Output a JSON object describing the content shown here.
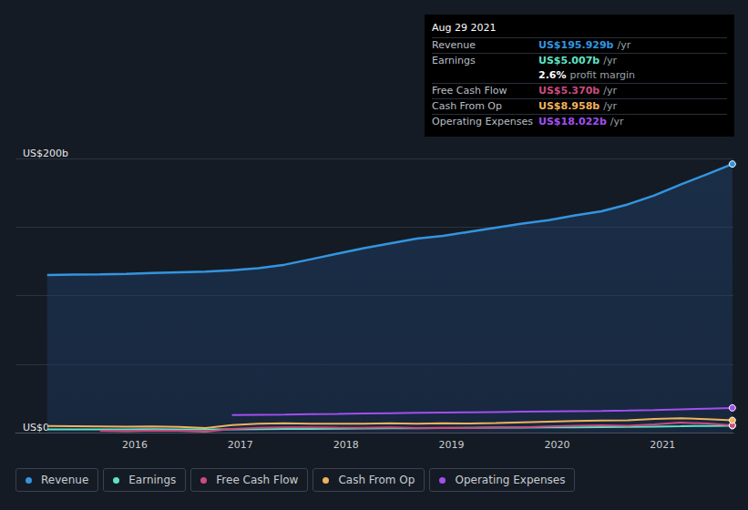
{
  "chart_data": {
    "type": "line",
    "x": [
      2015.17,
      2015.42,
      2015.67,
      2015.92,
      2016.17,
      2016.42,
      2016.67,
      2016.92,
      2017.17,
      2017.42,
      2017.67,
      2017.92,
      2018.17,
      2018.42,
      2018.67,
      2018.92,
      2019.17,
      2019.42,
      2019.67,
      2019.92,
      2020.17,
      2020.42,
      2020.67,
      2020.92,
      2021.17,
      2021.42,
      2021.66
    ],
    "series": [
      {
        "name": "Revenue",
        "color": "#3395e0",
        "type": "area",
        "values": [
          115.0,
          115.2,
          115.4,
          115.8,
          116.5,
          117.0,
          117.5,
          118.5,
          120.0,
          122.5,
          126.5,
          130.5,
          134.5,
          138.0,
          141.5,
          143.5,
          146.5,
          149.5,
          152.5,
          155.0,
          158.5,
          161.5,
          166.5,
          173.0,
          181.0,
          188.5,
          195.929
        ]
      },
      {
        "name": "Earnings",
        "color": "#5fe3c5",
        "values": [
          2.3,
          2.35,
          2.4,
          2.4,
          2.45,
          2.4,
          2.35,
          2.4,
          2.5,
          2.6,
          2.7,
          2.9,
          3.0,
          3.1,
          3.2,
          3.4,
          3.5,
          3.6,
          3.7,
          3.8,
          3.9,
          4.0,
          4.1,
          4.4,
          4.6,
          4.9,
          5.007
        ]
      },
      {
        "name": "Free Cash Flow",
        "color": "#cc4b80",
        "values": [
          null,
          null,
          1.3,
          1.0,
          1.5,
          1.3,
          0.6,
          2.7,
          3.5,
          3.9,
          3.8,
          3.6,
          3.5,
          3.8,
          3.3,
          3.5,
          3.3,
          3.7,
          3.9,
          4.5,
          5.0,
          5.3,
          5.0,
          6.0,
          7.3,
          6.6,
          5.37
        ]
      },
      {
        "name": "Cash From Op",
        "color": "#f0b35b",
        "values": [
          4.8,
          4.7,
          4.5,
          4.3,
          4.5,
          4.2,
          3.3,
          5.5,
          6.5,
          6.8,
          6.5,
          6.4,
          6.5,
          6.8,
          6.4,
          6.8,
          6.7,
          7.0,
          7.5,
          8.0,
          8.5,
          8.8,
          8.9,
          10.0,
          10.5,
          9.8,
          8.958
        ]
      },
      {
        "name": "Operating Expenses",
        "color": "#a24ff0",
        "values": [
          null,
          null,
          null,
          null,
          null,
          null,
          null,
          12.8,
          13.0,
          13.2,
          13.5,
          13.7,
          14.0,
          14.2,
          14.4,
          14.6,
          14.8,
          15.0,
          15.2,
          15.4,
          15.6,
          15.8,
          16.1,
          16.5,
          17.0,
          17.5,
          18.022
        ]
      }
    ],
    "xlim": [
      2014.87,
      2021.67
    ],
    "xticks": [
      2016,
      2017,
      2018,
      2019,
      2020,
      2021
    ],
    "ylim": [
      0,
      200
    ],
    "yticks": [
      {
        "value": 0,
        "label": "US$0"
      },
      {
        "value": 50,
        "label": null
      },
      {
        "value": 100,
        "label": null
      },
      {
        "value": 150,
        "label": null
      },
      {
        "value": 200,
        "label": "US$200b"
      }
    ],
    "grid": true,
    "legend": "bottom left",
    "info_box": {
      "title": "Aug 29 2021",
      "rows": [
        {
          "label": "Revenue",
          "value": "US$195.929b",
          "unit": "/yr"
        },
        {
          "label": "Earnings",
          "value": "US$5.007b",
          "unit": "/yr"
        },
        {
          "value": "2.6%",
          "text": "profit margin"
        },
        {
          "label": "Free Cash Flow",
          "value": "US$5.370b",
          "unit": "/yr"
        },
        {
          "label": "Cash From Op",
          "value": "US$8.958b",
          "unit": "/yr"
        },
        {
          "label": "Operating Expenses",
          "value": "US$18.022b",
          "unit": "/yr"
        }
      ]
    }
  }
}
